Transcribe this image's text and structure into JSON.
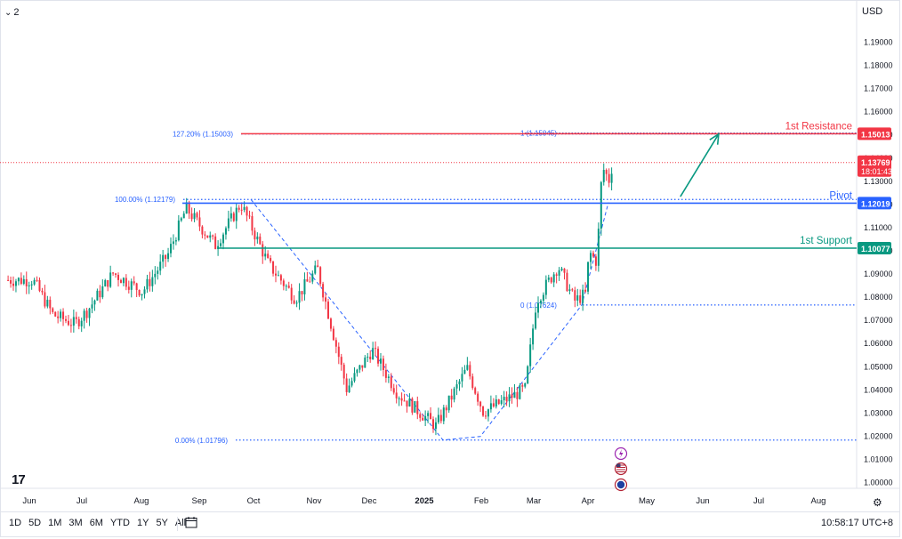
{
  "header": {
    "chevron_icon": "chevron-down-icon",
    "pane_count": "2",
    "currency": "USD"
  },
  "bottom": {
    "ranges": [
      "1D",
      "5D",
      "1M",
      "3M",
      "6M",
      "YTD",
      "1Y",
      "5Y",
      "All"
    ],
    "clock": "10:58:17 UTC+8",
    "calendar_icon": "calendar-icon",
    "settings_icon": "gear-icon"
  },
  "chart_data": {
    "type": "candlestick",
    "title": "",
    "y_axis": {
      "side": "right",
      "ylim": [
        0.994,
        1.2
      ],
      "ticks": [
        "1.19000",
        "1.18000",
        "1.17000",
        "1.16000",
        "1.15000",
        "1.14000",
        "1.13000",
        "1.12000",
        "1.11000",
        "1.10000",
        "1.09000",
        "1.08000",
        "1.07000",
        "1.06000",
        "1.05000",
        "1.04000",
        "1.03000",
        "1.02000",
        "1.01000",
        "1.00000"
      ]
    },
    "x_axis": {
      "labels": [
        "Jun",
        "Jul",
        "Aug",
        "Sep",
        "Oct",
        "Nov",
        "Dec",
        "2025",
        "Feb",
        "Mar",
        "Apr",
        "May",
        "Jun",
        "Jul",
        "Aug"
      ]
    },
    "levels": [
      {
        "name": "1st Resistance",
        "value": 1.15013,
        "price_label": "1.15013",
        "color": "#f23645"
      },
      {
        "name": "Pivot",
        "value": 1.12019,
        "price_label": "1.12019",
        "color": "#2962ff"
      },
      {
        "name": "1st Support",
        "value": 1.10077,
        "price_label": "1.10077",
        "color": "#089981"
      }
    ],
    "current_price": {
      "value": 1.13769,
      "price_label": "1.13769",
      "countdown": "18:01:43",
      "color": "#f23645"
    },
    "fib_levels": [
      {
        "label": "127.20% (1.15003)",
        "value": 1.15003
      },
      {
        "label": "100.00% (1.12179)",
        "value": 1.12179
      },
      {
        "label": "0.00% (1.01796)",
        "value": 1.01796
      }
    ],
    "trend_fib_levels": [
      {
        "label": "1 (1.15045)",
        "value": 1.15045
      },
      {
        "label": "0 (1.07624)",
        "value": 1.07624
      }
    ],
    "path_points": [
      {
        "date": "2024-06-03",
        "value": 1.087
      },
      {
        "date": "2024-06-14",
        "value": 1.072
      },
      {
        "date": "2024-06-26",
        "value": 1.068
      },
      {
        "date": "2024-07-03",
        "value": 1.074
      },
      {
        "date": "2024-07-17",
        "value": 1.09
      },
      {
        "date": "2024-08-02",
        "value": 1.082
      },
      {
        "date": "2024-08-16",
        "value": 1.098
      },
      {
        "date": "2024-08-26",
        "value": 1.118
      },
      {
        "date": "2024-09-11",
        "value": 1.102
      },
      {
        "date": "2024-09-25",
        "value": 1.12
      },
      {
        "date": "2024-10-10",
        "value": 1.094
      },
      {
        "date": "2024-10-25",
        "value": 1.079
      },
      {
        "date": "2024-11-06",
        "value": 1.092
      },
      {
        "date": "2024-11-22",
        "value": 1.04
      },
      {
        "date": "2024-12-06",
        "value": 1.057
      },
      {
        "date": "2024-12-20",
        "value": 1.038
      },
      {
        "date": "2025-01-10",
        "value": 1.024
      },
      {
        "date": "2025-01-27",
        "value": 1.049
      },
      {
        "date": "2025-02-05",
        "value": 1.03
      },
      {
        "date": "2025-02-28",
        "value": 1.04
      },
      {
        "date": "2025-03-06",
        "value": 1.078
      },
      {
        "date": "2025-03-18",
        "value": 1.093
      },
      {
        "date": "2025-03-27",
        "value": 1.078
      },
      {
        "date": "2025-04-02",
        "value": 1.081
      },
      {
        "date": "2025-04-04",
        "value": 1.099
      },
      {
        "date": "2025-04-08",
        "value": 1.095
      },
      {
        "date": "2025-04-10",
        "value": 1.118
      },
      {
        "date": "2025-04-11",
        "value": 1.136
      },
      {
        "date": "2025-04-15",
        "value": 1.13
      },
      {
        "date": "2025-04-17",
        "value": 1.138
      }
    ],
    "arrow": {
      "from": {
        "date": "2025-05-24",
        "value": 1.123
      },
      "to": {
        "date": "2025-06-14",
        "value": 1.15
      },
      "color": "#089981"
    },
    "grid": false,
    "legend": "none",
    "event_icons": [
      "lightning-icon",
      "us-flag-icon",
      "globe-icon"
    ]
  }
}
